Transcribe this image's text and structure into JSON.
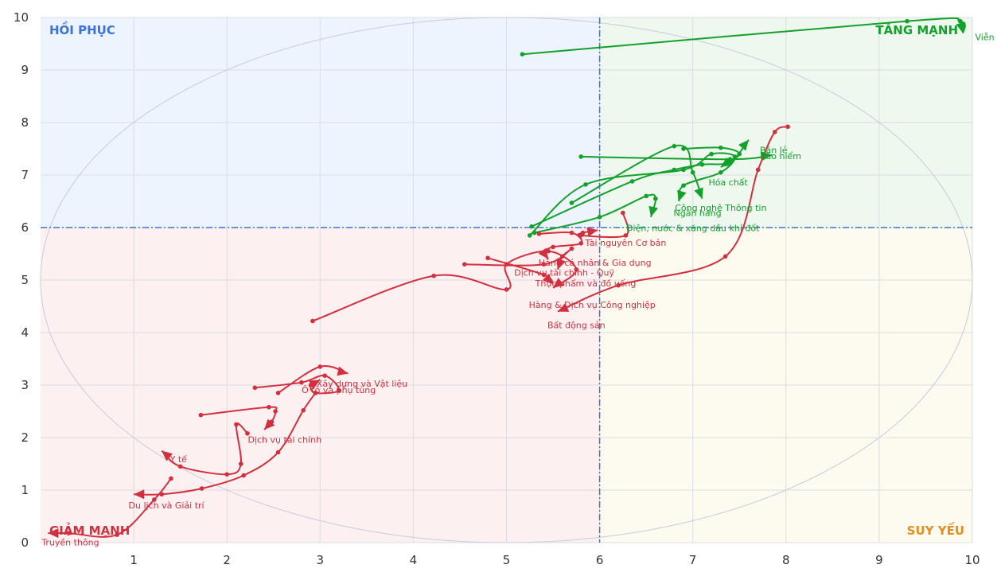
{
  "chart_data": {
    "type": "scatter",
    "xlim": [
      0,
      10
    ],
    "ylim": [
      0,
      10
    ],
    "x_ticks": [
      "1",
      "2",
      "3",
      "4",
      "5",
      "6",
      "7",
      "8",
      "9",
      "10"
    ],
    "y_ticks": [
      "0",
      "1",
      "2",
      "3",
      "4",
      "5",
      "6",
      "7",
      "8",
      "9",
      "10"
    ],
    "grid": true,
    "reference_lines": {
      "x": 6,
      "y": 6
    },
    "quadrant_labels": {
      "top_left": "HỒI PHỤC",
      "top_right": "TĂNG MẠNH",
      "bottom_left": "GIẢM MẠNH",
      "bottom_right": "SUY YẾU"
    },
    "colors": {
      "up": "#12a12a",
      "down": "#d2303f",
      "top_left_label": "#3b73d6",
      "top_right_label": "#12a12a",
      "bottom_left_label": "#d2303f",
      "bottom_right_label": "#e09020",
      "bg_top_left": "#eef4fd",
      "bg_top_right": "#eef8ee",
      "bg_bottom_left": "#fdf0f0",
      "bg_bottom_right": "#fdfaef",
      "ref_line": "#3b73d6"
    },
    "series": [
      {
        "name": "Viễn thông",
        "color": "up",
        "points": [
          [
            5.17,
            9.3
          ],
          [
            9.3,
            9.93
          ],
          [
            9.87,
            9.93
          ],
          [
            9.9,
            9.7
          ]
        ]
      },
      {
        "name": "Bán lẻ",
        "color": "up",
        "points": [
          [
            5.8,
            7.35
          ],
          [
            7.4,
            7.3
          ],
          [
            7.85,
            7.38
          ]
        ]
      },
      {
        "name": "Bảo hiểm",
        "color": "up",
        "points": [
          [
            6.9,
            7.5
          ],
          [
            7.3,
            7.52
          ],
          [
            7.5,
            7.4
          ],
          [
            7.3,
            7.15
          ]
        ]
      },
      {
        "name": "Hóa chất",
        "color": "up",
        "points": [
          [
            5.27,
            6.02
          ],
          [
            6.35,
            6.88
          ],
          [
            6.8,
            7.1
          ],
          [
            7.1,
            7.2
          ],
          [
            7.4,
            7.25
          ],
          [
            7.6,
            7.67
          ]
        ]
      },
      {
        "name": "Công nghệ Thông tin",
        "color": "up",
        "points": [
          [
            5.25,
            5.85
          ],
          [
            5.85,
            6.82
          ],
          [
            6.9,
            7.1
          ],
          [
            7.2,
            7.4
          ],
          [
            7.45,
            7.35
          ],
          [
            7.3,
            7.05
          ],
          [
            6.9,
            6.8
          ],
          [
            6.85,
            6.5
          ]
        ]
      },
      {
        "name": "Ngân hàng",
        "color": "up",
        "points": [
          [
            5.7,
            6.47
          ],
          [
            6.8,
            7.55
          ],
          [
            7.0,
            7.05
          ],
          [
            7.1,
            6.55
          ]
        ]
      },
      {
        "name": "Điện, nước & xăng dầu khí đốt",
        "color": "up",
        "points": [
          [
            5.3,
            5.9
          ],
          [
            6.0,
            6.2
          ],
          [
            6.5,
            6.6
          ],
          [
            6.6,
            6.55
          ],
          [
            6.55,
            6.2
          ]
        ]
      },
      {
        "name": "Tài nguyên Cơ bản",
        "color": "down",
        "points": [
          [
            6.25,
            6.28
          ],
          [
            6.28,
            5.85
          ],
          [
            5.8,
            5.85
          ],
          [
            5.82,
            5.9
          ],
          [
            5.98,
            5.95
          ]
        ]
      },
      {
        "name": "Hàng cá nhân & Gia dụng",
        "color": "down",
        "points": [
          [
            5.35,
            5.88
          ],
          [
            5.7,
            5.9
          ],
          [
            5.8,
            5.7
          ],
          [
            5.5,
            5.63
          ],
          [
            5.4,
            5.52
          ],
          [
            5.45,
            5.4
          ]
        ]
      },
      {
        "name": "Dịch vụ tài chính - Quỹ",
        "color": "down",
        "points": [
          [
            4.55,
            5.3
          ],
          [
            5.4,
            5.3
          ],
          [
            5.7,
            5.6
          ],
          [
            5.6,
            5.45
          ],
          [
            5.55,
            5.2
          ]
        ]
      },
      {
        "name": "Thực phẩm và đồ uống",
        "color": "down",
        "points": [
          [
            4.8,
            5.42
          ],
          [
            5.4,
            5.1
          ],
          [
            5.5,
            4.92
          ]
        ]
      },
      {
        "name": "Hàng & Dịch vụ Công nghiệp",
        "color": "down",
        "points": [
          [
            2.92,
            4.22
          ],
          [
            4.22,
            5.08
          ],
          [
            5.0,
            4.82
          ],
          [
            5.0,
            5.3
          ],
          [
            5.45,
            5.55
          ],
          [
            5.75,
            5.2
          ],
          [
            5.5,
            4.85
          ]
        ]
      },
      {
        "name": "Bất động sản",
        "color": "down",
        "points": [
          [
            8.02,
            7.92
          ],
          [
            7.88,
            7.82
          ],
          [
            7.7,
            7.1
          ],
          [
            7.35,
            5.45
          ],
          [
            6.2,
            4.9
          ],
          [
            5.55,
            4.4
          ]
        ]
      },
      {
        "name": "Xây dựng và Vật liệu",
        "color": "down",
        "points": [
          [
            2.55,
            2.85
          ],
          [
            3.0,
            3.35
          ],
          [
            3.3,
            3.22
          ]
        ]
      },
      {
        "name": "Ô tô và phụ tùng",
        "color": "down",
        "points": [
          [
            2.3,
            2.95
          ],
          [
            2.8,
            3.05
          ],
          [
            3.05,
            3.18
          ],
          [
            3.2,
            2.9
          ],
          [
            2.95,
            2.85
          ],
          [
            2.9,
            3.0
          ],
          [
            3.0,
            3.1
          ]
        ]
      },
      {
        "name": "Dịch vụ tài chính",
        "color": "down",
        "points": [
          [
            1.72,
            2.43
          ],
          [
            2.45,
            2.58
          ],
          [
            2.52,
            2.5
          ],
          [
            2.48,
            2.3
          ],
          [
            2.4,
            2.15
          ]
        ]
      },
      {
        "name": "Y tế",
        "color": "down",
        "points": [
          [
            2.22,
            2.08
          ],
          [
            2.1,
            2.25
          ],
          [
            2.15,
            1.5
          ],
          [
            2.0,
            1.3
          ],
          [
            1.5,
            1.45
          ],
          [
            1.3,
            1.75
          ]
        ]
      },
      {
        "name": "Du lịch và Giải trí",
        "color": "down",
        "points": [
          [
            2.95,
            2.85
          ],
          [
            2.82,
            2.52
          ],
          [
            2.55,
            1.72
          ],
          [
            2.18,
            1.28
          ],
          [
            1.73,
            1.03
          ],
          [
            1.3,
            0.92
          ],
          [
            1.0,
            0.92
          ]
        ]
      },
      {
        "name": "Truyền thông",
        "color": "down",
        "points": [
          [
            1.4,
            1.22
          ],
          [
            1.22,
            0.82
          ],
          [
            0.82,
            0.15
          ],
          [
            0.3,
            0.18
          ],
          [
            0.08,
            0.18
          ]
        ]
      }
    ],
    "labels": [
      {
        "text": "Viễn thông",
        "x": 10.03,
        "y": 9.57,
        "color": "up",
        "anchor": "start"
      },
      {
        "text": "Bán lẻ",
        "x": 7.72,
        "y": 7.42,
        "color": "up",
        "anchor": "start"
      },
      {
        "text": "Bảo hiểm",
        "x": 7.72,
        "y": 7.3,
        "color": "up",
        "anchor": "start"
      },
      {
        "text": "Hóa chất",
        "x": 7.38,
        "y": 6.8,
        "color": "up",
        "anchor": "middle"
      },
      {
        "text": "Công nghệ Thông tin",
        "x": 7.3,
        "y": 6.32,
        "color": "up",
        "anchor": "middle"
      },
      {
        "text": "Ngân hàng",
        "x": 7.05,
        "y": 6.22,
        "color": "up",
        "anchor": "middle"
      },
      {
        "text": "Điện, nước & xăng dầu khí đốt",
        "x": 7.0,
        "y": 5.93,
        "color": "up",
        "anchor": "middle"
      },
      {
        "text": "Tài nguyên Cơ bản",
        "x": 6.28,
        "y": 5.65,
        "color": "down",
        "anchor": "middle"
      },
      {
        "text": "Hàng cá nhân & Gia dụng",
        "x": 5.95,
        "y": 5.27,
        "color": "down",
        "anchor": "middle"
      },
      {
        "text": "Dịch vụ tài chính - Quỹ",
        "x": 5.62,
        "y": 5.08,
        "color": "down",
        "anchor": "middle"
      },
      {
        "text": "Thực phẩm và đồ uống",
        "x": 5.85,
        "y": 4.88,
        "color": "down",
        "anchor": "middle"
      },
      {
        "text": "Hàng & Dịch vụ Công nghiệp",
        "x": 5.92,
        "y": 4.47,
        "color": "down",
        "anchor": "middle"
      },
      {
        "text": "Bất động sản",
        "x": 5.75,
        "y": 4.08,
        "color": "down",
        "anchor": "middle"
      },
      {
        "text": "Xây dựng và Vật liệu",
        "x": 3.45,
        "y": 2.97,
        "color": "down",
        "anchor": "middle"
      },
      {
        "text": "Ô tô và phụ tùng",
        "x": 3.2,
        "y": 2.85,
        "color": "down",
        "anchor": "middle"
      },
      {
        "text": "Dịch vụ tài chính",
        "x": 2.62,
        "y": 1.9,
        "color": "down",
        "anchor": "middle"
      },
      {
        "text": "Y tế",
        "x": 1.48,
        "y": 1.53,
        "color": "down",
        "anchor": "middle"
      },
      {
        "text": "Du lịch và Giải trí",
        "x": 1.35,
        "y": 0.65,
        "color": "down",
        "anchor": "middle"
      },
      {
        "text": "Truyền thông",
        "x": 0.32,
        "y": -0.05,
        "color": "down",
        "anchor": "middle"
      }
    ]
  }
}
